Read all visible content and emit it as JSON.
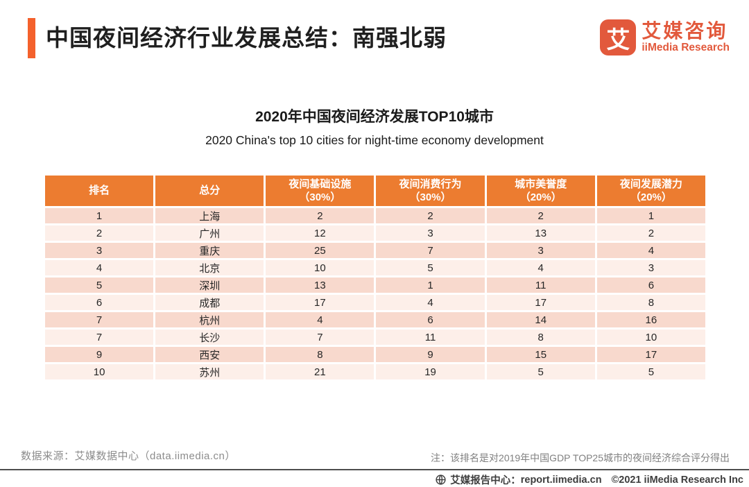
{
  "page": {
    "accent_color": "#F4612C",
    "header_orange": "#EC7C30",
    "row_color_odd": "#F8D9CD",
    "row_color_even": "#FDEFE9",
    "logo_color": "#E2593C"
  },
  "header": {
    "title": "中国夜间经济行业发展总结：南强北弱",
    "logo": {
      "icon_char": "艾",
      "name_cn": "艾媒咨询",
      "name_en": "iiMedia Research"
    }
  },
  "chart": {
    "title_cn": "2020年中国夜间经济发展TOP10城市",
    "title_en": "2020 China's top 10 cities for night-time economy development"
  },
  "chart_data": {
    "type": "table",
    "title": "2020年中国夜间经济发展TOP10城市",
    "subtitle": "2020 China's top 10 cities for night-time economy development",
    "header_lines": [
      [
        "排名"
      ],
      [
        "总分"
      ],
      [
        "夜间基础设施",
        "（30%）"
      ],
      [
        "夜间消费行为",
        "（30%）"
      ],
      [
        "城市美誉度",
        "（20%）"
      ],
      [
        "夜间发展潜力",
        "（20%）"
      ]
    ],
    "columns": [
      "排名",
      "总分",
      "夜间基础设施（30%）",
      "夜间消费行为（30%）",
      "城市美誉度（20%）",
      "夜间发展潜力（20%）"
    ],
    "rows": [
      [
        "1",
        "上海",
        "2",
        "2",
        "2",
        "1"
      ],
      [
        "2",
        "广州",
        "12",
        "3",
        "13",
        "2"
      ],
      [
        "3",
        "重庆",
        "25",
        "7",
        "3",
        "4"
      ],
      [
        "4",
        "北京",
        "10",
        "5",
        "4",
        "3"
      ],
      [
        "5",
        "深圳",
        "13",
        "1",
        "11",
        "6"
      ],
      [
        "6",
        "成都",
        "17",
        "4",
        "17",
        "8"
      ],
      [
        "7",
        "杭州",
        "4",
        "6",
        "14",
        "16"
      ],
      [
        "7",
        "长沙",
        "7",
        "11",
        "8",
        "10"
      ],
      [
        "9",
        "西安",
        "8",
        "9",
        "15",
        "17"
      ],
      [
        "10",
        "苏州",
        "21",
        "19",
        "5",
        "5"
      ]
    ],
    "layout": {
      "header_bg": "#EC7C30",
      "row_colors_alternating": [
        "#F8D9CD",
        "#FDEFE9"
      ]
    }
  },
  "footer": {
    "source": "数据来源：艾媒数据中心（data.iimedia.cn）",
    "note": "注：该排名是对2019年中国GDP TOP25城市的夜间经济综合评分得出",
    "report_center_label": "艾媒报告中心：",
    "report_url": "report.iimedia.cn",
    "copyright": "©2021  iiMedia Research Inc"
  }
}
